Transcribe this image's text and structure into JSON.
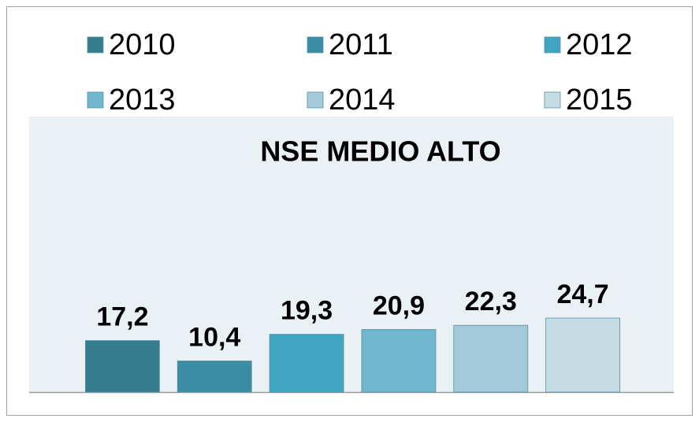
{
  "chart_data": {
    "type": "bar",
    "title": "NSE MEDIO ALTO",
    "categories": [
      "2010",
      "2011",
      "2012",
      "2013",
      "2014",
      "2015"
    ],
    "values": [
      17.2,
      10.4,
      19.3,
      20.9,
      22.3,
      24.7
    ],
    "value_labels": [
      "17,2",
      "10,4",
      "19,3",
      "20,9",
      "22,3",
      "24,7"
    ],
    "colors": [
      "#357c8e",
      "#3b8da5",
      "#41a4c0",
      "#71b6cf",
      "#a2cadb",
      "#c5dce5"
    ],
    "ylim": [
      0,
      92
    ],
    "legend": "top"
  }
}
